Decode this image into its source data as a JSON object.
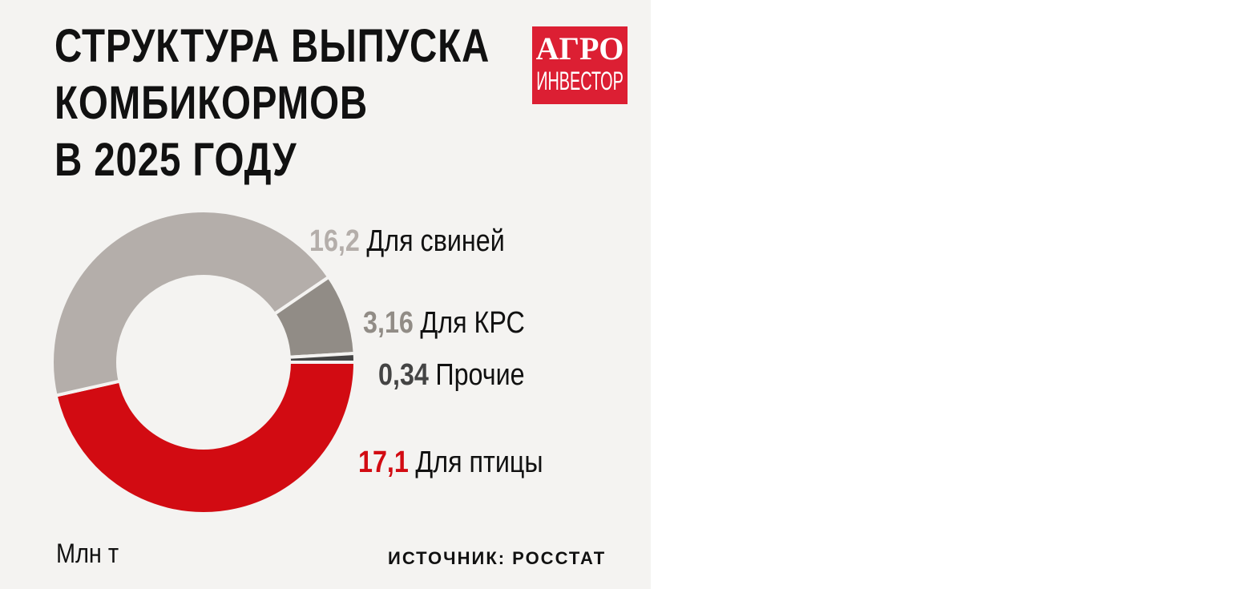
{
  "chart_data": {
    "type": "pie",
    "variant": "donut",
    "title": "СТРУКТУРА ВЫПУСКА\nКОМБИКОРМОВ\nВ 2025 ГОДУ",
    "unit": "Млн т",
    "source": "ИСТОЧНИК: РОССТАТ",
    "slices": [
      {
        "label": "Для птицы",
        "value": 17.1,
        "value_text": "17,1",
        "color": "#d20b12",
        "label_color": "#d20b12"
      },
      {
        "label": "Для свиней",
        "value": 16.2,
        "value_text": "16,2",
        "color": "#b4aeaa",
        "label_color": "#b4aeaa"
      },
      {
        "label": "Для КРС",
        "value": 3.16,
        "value_text": "3,16",
        "color": "#918c86",
        "label_color": "#918c86"
      },
      {
        "label": "Прочие",
        "value": 0.34,
        "value_text": "0,34",
        "color": "#444444",
        "label_color": "#444444"
      }
    ]
  },
  "logo": {
    "line1": "АГРО",
    "line2": "ИНВЕСТОР",
    "color": "#dc1f33"
  }
}
